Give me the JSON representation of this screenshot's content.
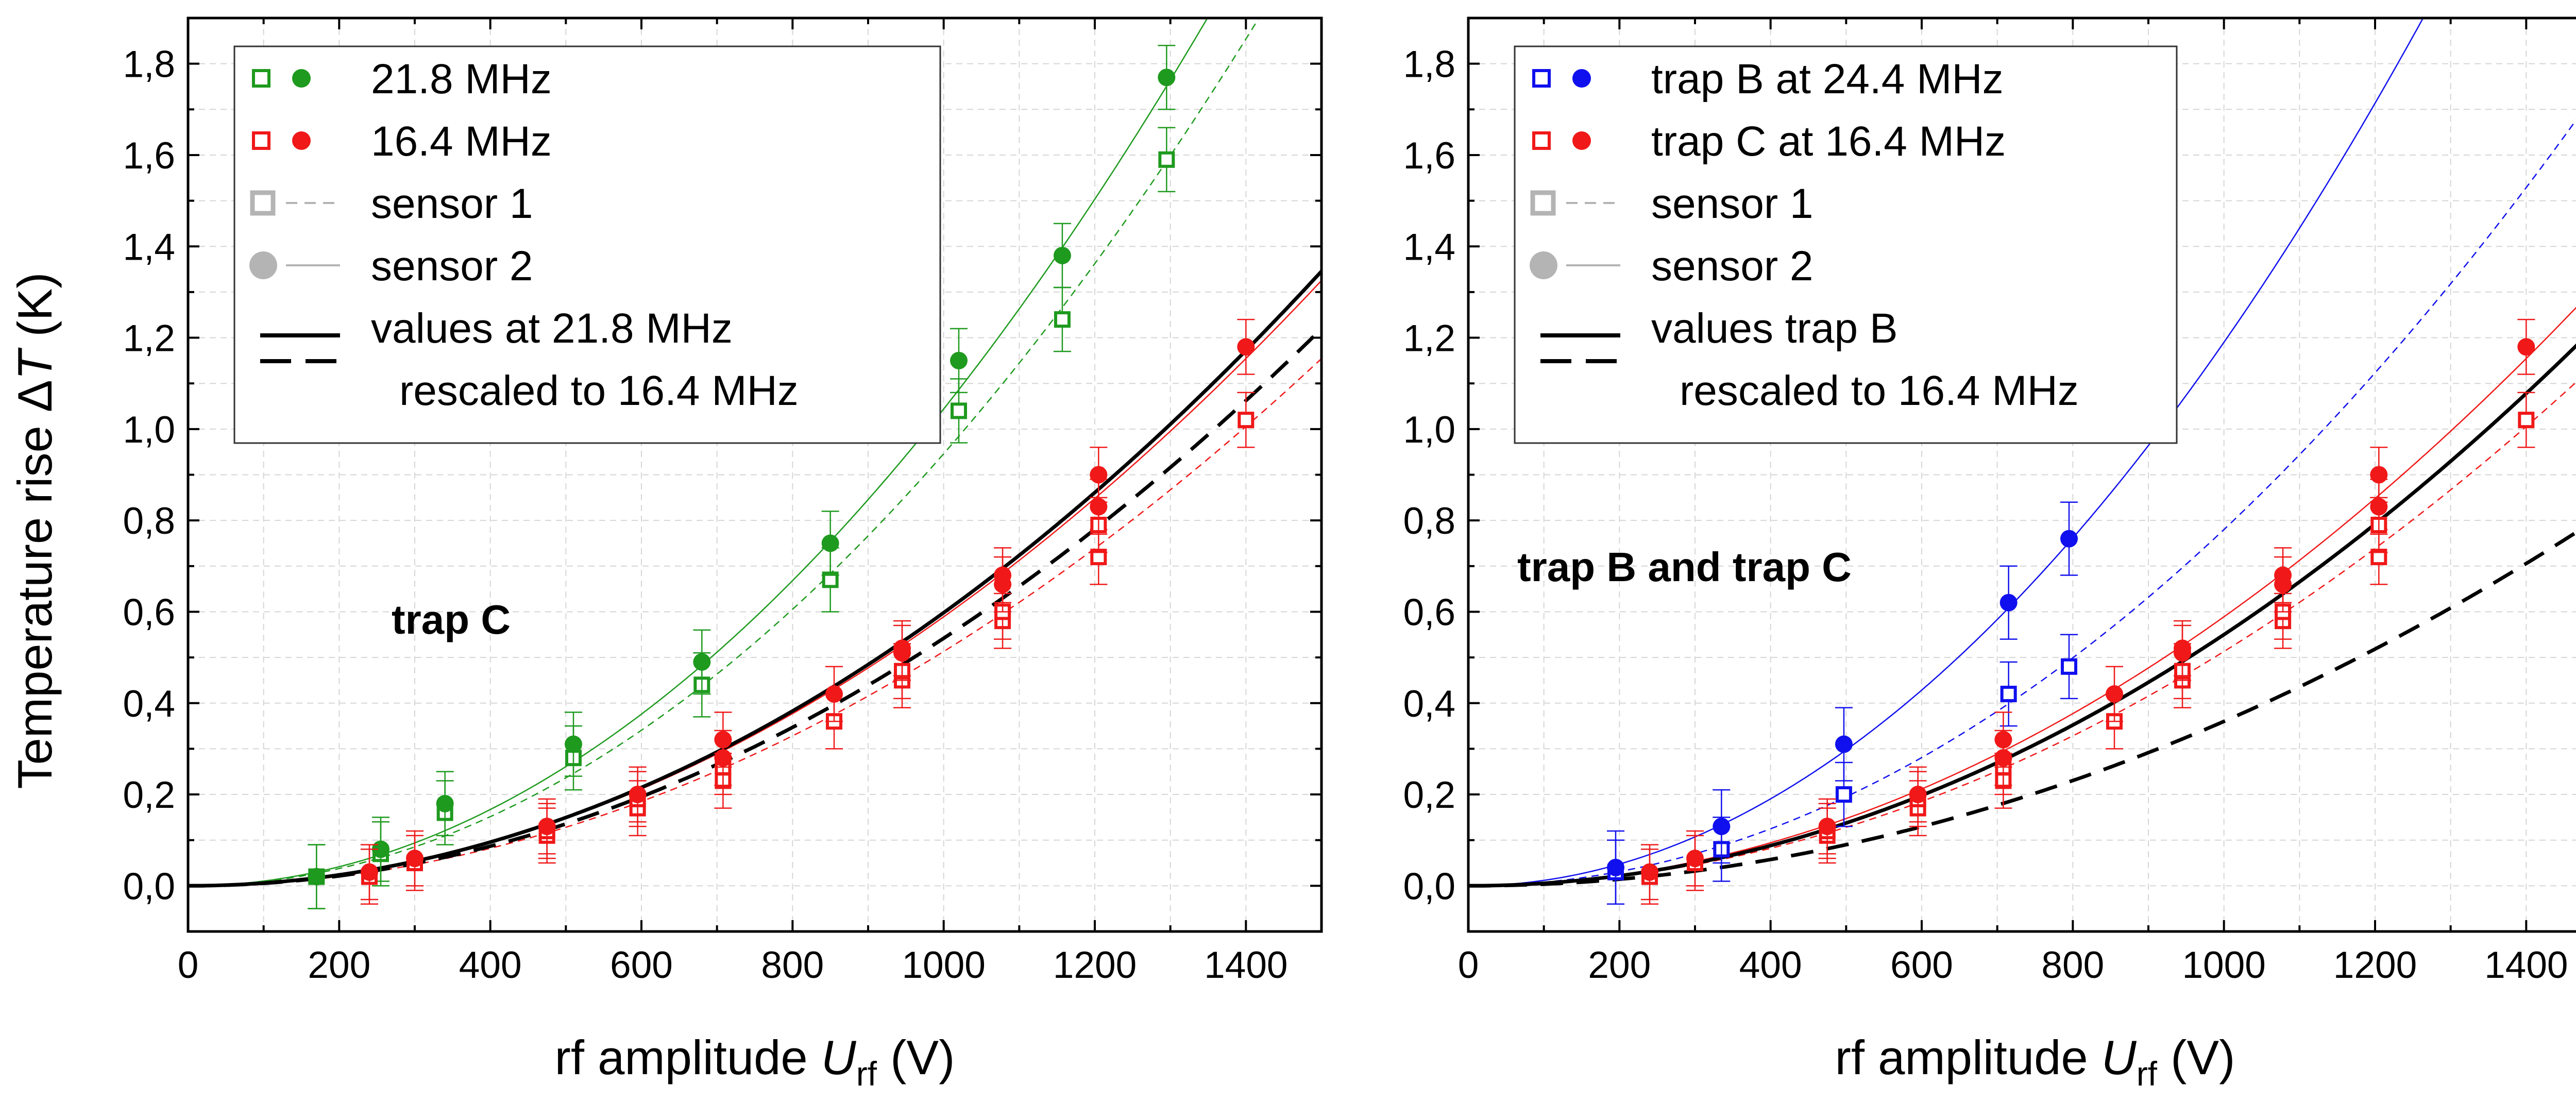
{
  "figure": {
    "y_axis_label": "Temperature rise",
    "y_axis_symbol": "T",
    "y_axis_unit": "(K)"
  },
  "chart_data": [
    {
      "type": "scatter",
      "panel": "left",
      "annotation": "trap C",
      "xlabel": "rf amplitude U_rf (V)",
      "xlabel_parts": {
        "pre": "rf amplitude ",
        "var": "U",
        "sub": "rf",
        "post": " (V)"
      },
      "ylabel": "Temperature rise ΔT (K)",
      "xlim": [
        0,
        1500
      ],
      "ylim": [
        -0.1,
        1.9
      ],
      "xticks": [
        0,
        200,
        400,
        600,
        800,
        1000,
        1200,
        1400
      ],
      "xtick_labels": [
        "0",
        "200",
        "400",
        "600",
        "800",
        "1000",
        "1200",
        "1400"
      ],
      "yticks": [
        0.0,
        0.2,
        0.4,
        0.6,
        0.8,
        1.0,
        1.2,
        1.4,
        1.6,
        1.8
      ],
      "ytick_labels": [
        "0,0",
        "0,2",
        "0,4",
        "0,6",
        "0,8",
        "1,0",
        "1,2",
        "1,4",
        "1,6",
        "1,8"
      ],
      "grid": true,
      "legend_position": "top-left",
      "legend": [
        {
          "kind": "pair",
          "color": "#1e9a1e",
          "label": "21.8 MHz"
        },
        {
          "kind": "pair",
          "color": "#f01818",
          "label": "16.4 MHz"
        },
        {
          "kind": "sensor1",
          "color": "#b4b4b4",
          "label": "sensor 1"
        },
        {
          "kind": "sensor2",
          "color": "#b4b4b4",
          "label": "sensor 2"
        },
        {
          "kind": "values",
          "color": "#000000",
          "label": "values at 21.8 MHz",
          "label2": "rescaled to 16.4 MHz"
        }
      ],
      "series": [
        {
          "name": "21.8 MHz sensor 1",
          "color": "#1e9a1e",
          "marker": "open-square",
          "err": 0.07,
          "x": [
            170,
            255,
            340,
            510,
            680,
            850,
            1020,
            1157,
            1295
          ],
          "y": [
            0.02,
            0.07,
            0.16,
            0.28,
            0.44,
            0.67,
            1.04,
            1.24,
            1.59
          ]
        },
        {
          "name": "21.8 MHz sensor 2",
          "color": "#1e9a1e",
          "marker": "filled-circle",
          "err": 0.07,
          "x": [
            170,
            255,
            340,
            510,
            680,
            850,
            1020,
            1157,
            1295
          ],
          "y": [
            0.02,
            0.08,
            0.18,
            0.31,
            0.49,
            0.75,
            1.15,
            1.38,
            1.77
          ]
        },
        {
          "name": "16.4 MHz sensor 1",
          "color": "#f01818",
          "marker": "open-square",
          "err": 0.06,
          "x": [
            240,
            300,
            475,
            595,
            708,
            855,
            945,
            1078,
            1205,
            1400
          ],
          "y": [
            0.02,
            0.05,
            0.11,
            0.17,
            0.23,
            0.36,
            0.45,
            0.58,
            0.72,
            1.02
          ]
        },
        {
          "name": "16.4 MHz sensor 1 (second run)",
          "color": "#f01818",
          "marker": "open-square",
          "err": 0.06,
          "x": [
            475,
            595,
            708,
            945,
            1078,
            1205
          ],
          "y": [
            0.12,
            0.19,
            0.26,
            0.47,
            0.6,
            0.79
          ]
        },
        {
          "name": "16.4 MHz sensor 2",
          "color": "#f01818",
          "marker": "filled-circle",
          "err": 0.06,
          "x": [
            240,
            300,
            475,
            595,
            708,
            855,
            945,
            1078,
            1205,
            1400
          ],
          "y": [
            0.03,
            0.06,
            0.13,
            0.2,
            0.32,
            0.42,
            0.52,
            0.68,
            0.9,
            1.18
          ]
        },
        {
          "name": "16.4 MHz sensor 2 (second run)",
          "color": "#f01818",
          "marker": "filled-circle",
          "err": 0.06,
          "x": [
            708,
            945,
            1078,
            1205
          ],
          "y": [
            0.28,
            0.51,
            0.66,
            0.83
          ]
        }
      ],
      "fits": [
        {
          "name": "21.8 MHz fit sensor 2",
          "color": "#1e9a1e",
          "style": "solid",
          "width": 2.5,
          "a": 1.044e-06,
          "b": 2.0
        },
        {
          "name": "21.8 MHz fit sensor 1",
          "color": "#1e9a1e",
          "style": "short-dash",
          "width": 2.5,
          "a": 9.46e-07,
          "b": 2.0
        },
        {
          "name": "16.4 MHz fit sensor 2",
          "color": "#f01818",
          "style": "solid",
          "width": 2.5,
          "a": 5.89e-07,
          "b": 2.0
        },
        {
          "name": "16.4 MHz fit sensor 1",
          "color": "#f01818",
          "style": "short-dash",
          "width": 2.5,
          "a": 5.13e-07,
          "b": 2.0
        },
        {
          "name": "values at 21.8 MHz rescaled (sensor 2)",
          "color": "#000000",
          "style": "solid",
          "width": 7,
          "a": 5.98e-07,
          "b": 2.0
        },
        {
          "name": "values at 21.8 MHz rescaled (sensor 1)",
          "color": "#000000",
          "style": "long-dash",
          "width": 7,
          "a": 5.42e-07,
          "b": 2.0
        }
      ]
    },
    {
      "type": "scatter",
      "panel": "right",
      "annotation": "trap B and trap C",
      "xlabel": "rf amplitude U_rf (V)",
      "xlabel_parts": {
        "pre": "rf amplitude ",
        "var": "U",
        "sub": "rf",
        "post": " (V)"
      },
      "xlim": [
        0,
        1500
      ],
      "ylim": [
        -0.1,
        1.9
      ],
      "xticks": [
        0,
        200,
        400,
        600,
        800,
        1000,
        1200,
        1400
      ],
      "xtick_labels": [
        "0",
        "200",
        "400",
        "600",
        "800",
        "1000",
        "1200",
        "1400"
      ],
      "yticks": [
        0.0,
        0.2,
        0.4,
        0.6,
        0.8,
        1.0,
        1.2,
        1.4,
        1.6,
        1.8
      ],
      "ytick_labels": [
        "0,0",
        "0,2",
        "0,4",
        "0,6",
        "0,8",
        "1,0",
        "1,2",
        "1,4",
        "1,6",
        "1,8"
      ],
      "grid": true,
      "legend_position": "top-left",
      "legend": [
        {
          "kind": "pair",
          "color": "#1010ee",
          "label": "trap B at 24.4 MHz"
        },
        {
          "kind": "pair",
          "color": "#f01818",
          "label": "trap C at 16.4 MHz"
        },
        {
          "kind": "sensor1",
          "color": "#b4b4b4",
          "label": "sensor 1"
        },
        {
          "kind": "sensor2",
          "color": "#b4b4b4",
          "label": "sensor 2"
        },
        {
          "kind": "values",
          "color": "#000000",
          "label": "values trap B",
          "label2": "rescaled to 16.4 MHz"
        }
      ],
      "series": [
        {
          "name": "trap B sensor 1",
          "color": "#1010ee",
          "marker": "open-square",
          "err": 0.07,
          "x": [
            195,
            335,
            497,
            715,
            795
          ],
          "y": [
            0.03,
            0.08,
            0.2,
            0.42,
            0.48
          ]
        },
        {
          "name": "trap B sensor 2",
          "color": "#1010ee",
          "marker": "filled-circle",
          "err": 0.08,
          "x": [
            195,
            335,
            497,
            715,
            795
          ],
          "y": [
            0.04,
            0.13,
            0.31,
            0.62,
            0.76
          ]
        },
        {
          "name": "trap C sensor 1",
          "color": "#f01818",
          "marker": "open-square",
          "err": 0.06,
          "x": [
            240,
            300,
            475,
            595,
            708,
            855,
            945,
            1078,
            1205,
            1400
          ],
          "y": [
            0.02,
            0.05,
            0.11,
            0.17,
            0.23,
            0.36,
            0.45,
            0.58,
            0.72,
            1.02
          ]
        },
        {
          "name": "trap C sensor 1 (second run)",
          "color": "#f01818",
          "marker": "open-square",
          "err": 0.06,
          "x": [
            475,
            595,
            708,
            945,
            1078,
            1205
          ],
          "y": [
            0.12,
            0.19,
            0.26,
            0.47,
            0.6,
            0.79
          ]
        },
        {
          "name": "trap C sensor 2",
          "color": "#f01818",
          "marker": "filled-circle",
          "err": 0.06,
          "x": [
            240,
            300,
            475,
            595,
            708,
            855,
            945,
            1078,
            1205,
            1400
          ],
          "y": [
            0.03,
            0.06,
            0.13,
            0.2,
            0.32,
            0.42,
            0.52,
            0.68,
            0.9,
            1.18
          ]
        },
        {
          "name": "trap C sensor 2 (second run)",
          "color": "#f01818",
          "marker": "filled-circle",
          "err": 0.06,
          "x": [
            708,
            945,
            1078,
            1205
          ],
          "y": [
            0.28,
            0.51,
            0.66,
            0.83
          ]
        }
      ],
      "fits": [
        {
          "name": "trap B fit sensor 2",
          "color": "#1010ee",
          "style": "solid",
          "width": 2.5,
          "a": 1.19e-06,
          "b": 2.0
        },
        {
          "name": "trap B fit sensor 1",
          "color": "#1010ee",
          "style": "short-dash",
          "width": 2.5,
          "a": 7.8e-07,
          "b": 2.0
        },
        {
          "name": "trap C fit sensor 2",
          "color": "#f01818",
          "style": "solid",
          "width": 2.5,
          "a": 5.89e-07,
          "b": 2.0
        },
        {
          "name": "trap C fit sensor 1",
          "color": "#f01818",
          "style": "short-dash",
          "width": 2.5,
          "a": 5.13e-07,
          "b": 2.0
        },
        {
          "name": "values trap B rescaled (sensor 2)",
          "color": "#000000",
          "style": "solid",
          "width": 7,
          "a": 5.5e-07,
          "b": 2.0
        },
        {
          "name": "values trap B rescaled (sensor 1)",
          "color": "#000000",
          "style": "long-dash",
          "width": 7,
          "a": 3.6e-07,
          "b": 2.0
        }
      ]
    }
  ]
}
